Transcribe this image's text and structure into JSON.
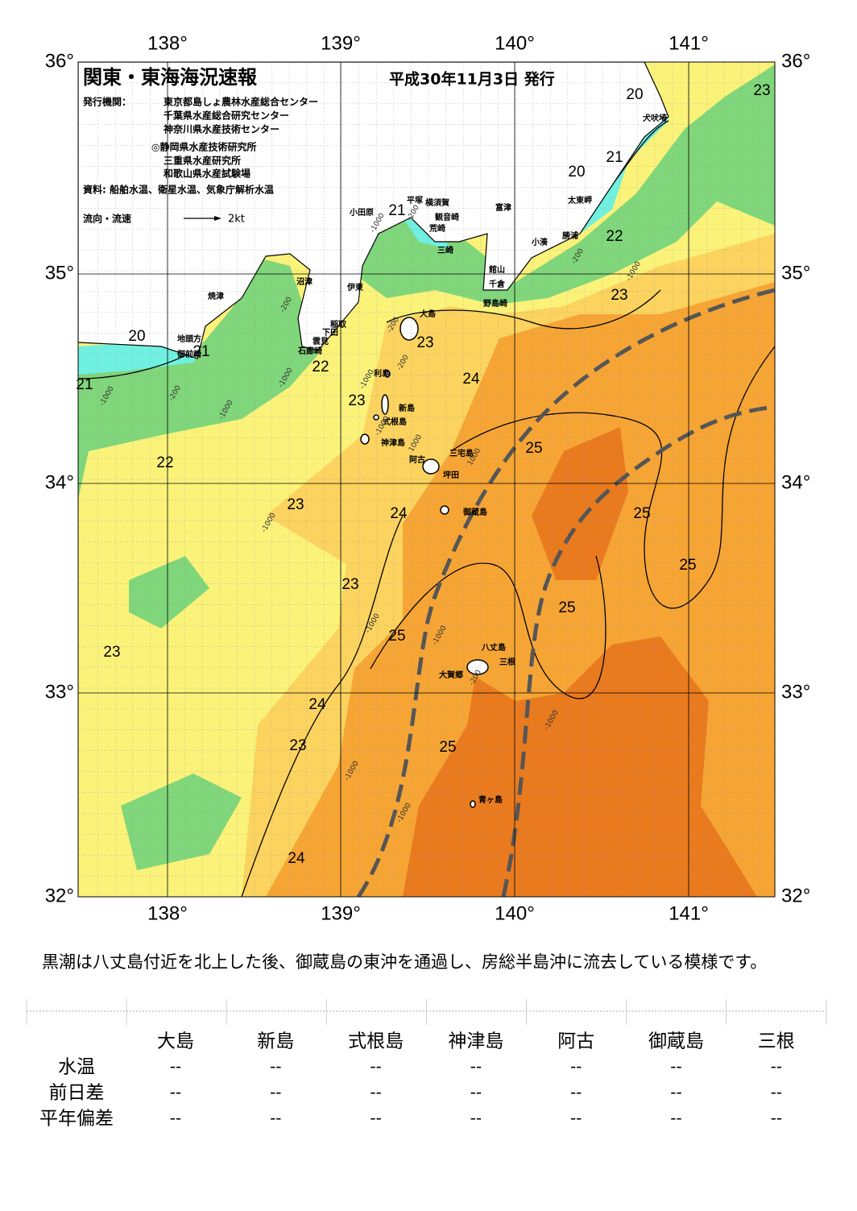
{
  "header": {
    "title": "関東・東海海況速報",
    "date": "平成30年11月3日 発行",
    "publisher_label": "発行機関：",
    "publishers": [
      "東京都島しょ農林水産総合センター",
      "千葉県水産総合研究センター",
      "神奈川県水産技術センター",
      "◎静岡県水産技術研究所",
      "三重県水産研究所",
      "和歌山県水産試験場"
    ],
    "sources": "資料: 船舶水温、衛星水温、気象庁解析水温",
    "legend_label": "流向・流速",
    "legend_speed": "2kt"
  },
  "map": {
    "lon_labels": [
      "138°",
      "139°",
      "140°",
      "141°"
    ],
    "lat_labels": [
      "36°",
      "35°",
      "34°",
      "33°",
      "32°"
    ],
    "place_names": [
      "犬吠埼",
      "太東岬",
      "勝浦",
      "小湊",
      "富津",
      "横須賀",
      "観音崎",
      "平塚",
      "荒崎",
      "三崎",
      "館山",
      "千倉",
      "野島崎",
      "小田原",
      "沼津",
      "伊東",
      "焼津",
      "稲取",
      "下田",
      "雲見",
      "石廊崎",
      "地頭方",
      "御前崎",
      "大島",
      "利島",
      "新島",
      "式根島",
      "神津島",
      "三宅島",
      "阿古",
      "坪田",
      "御蔵島",
      "八丈島",
      "三根",
      "大賀郷",
      "青ヶ島"
    ],
    "isotherm_labels": [
      "20",
      "23",
      "21",
      "20",
      "22",
      "21",
      "23",
      "20",
      "21",
      "23",
      "22",
      "24",
      "21",
      "23",
      "25",
      "22",
      "23",
      "24",
      "25",
      "25",
      "23",
      "25",
      "25",
      "23",
      "24",
      "25",
      "23",
      "24"
    ],
    "depth_labels": [
      "-200",
      "-1000",
      "-200",
      "-1000",
      "-1000",
      "-200",
      "-1000",
      "-200",
      "-1000",
      "-200",
      "-200",
      "-1000",
      "-1000",
      "1000",
      "1000",
      "-1000",
      "-1000",
      "-1000",
      "-200",
      "-1000",
      "-1000",
      "-1000"
    ]
  },
  "summary": "黒潮は八丈島付近を北上した後、御蔵島の東沖を通過し、房総半島沖に流去している模様です。",
  "table": {
    "columns": [
      "大島",
      "新島",
      "式根島",
      "神津島",
      "阿古",
      "御蔵島",
      "三根"
    ],
    "rows": [
      {
        "label": "水温",
        "values": [
          "--",
          "--",
          "--",
          "--",
          "--",
          "--",
          "--"
        ]
      },
      {
        "label": "前日差",
        "values": [
          "--",
          "--",
          "--",
          "--",
          "--",
          "--",
          "--"
        ]
      },
      {
        "label": "平年偏差",
        "values": [
          "--",
          "--",
          "--",
          "--",
          "--",
          "--",
          "--"
        ]
      }
    ]
  }
}
